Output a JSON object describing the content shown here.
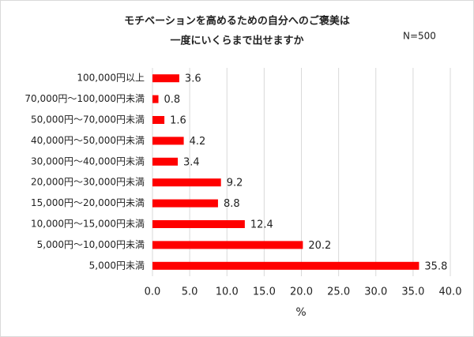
{
  "chart_data": {
    "type": "bar",
    "orientation": "horizontal",
    "title": [
      "モチベーションを高めるための自分へのご褒美は",
      "一度にいくらまで出せますか"
    ],
    "annotation": "N=500",
    "x_label": "%",
    "categories": [
      "100,000円以上",
      "70,000円～100,000円未満",
      "50,000円～70,000円未満",
      "40,000円～50,000円未満",
      "30,000円～40,000円未満",
      "20,000円～30,000円未満",
      "15,000円～20,000円未満",
      "10,000円～15,000円未満",
      "5,000円～10,000円未満",
      "5,000円未満"
    ],
    "values": [
      3.6,
      0.8,
      1.6,
      4.2,
      3.4,
      9.2,
      8.8,
      12.4,
      20.2,
      35.8
    ],
    "color": "#ff0000",
    "xlim": [
      0,
      40
    ],
    "xticks": [
      {
        "value": 0,
        "label": "0.0"
      },
      {
        "value": 5,
        "label": "5.0"
      },
      {
        "value": 10,
        "label": "10.0"
      },
      {
        "value": 15,
        "label": "15.0"
      },
      {
        "value": 20,
        "label": "20.0"
      },
      {
        "value": 25,
        "label": "25.0"
      },
      {
        "value": 30,
        "label": "30.0"
      },
      {
        "value": 35,
        "label": "35.0"
      },
      {
        "value": 40,
        "label": "40.0"
      }
    ],
    "grid": true
  }
}
